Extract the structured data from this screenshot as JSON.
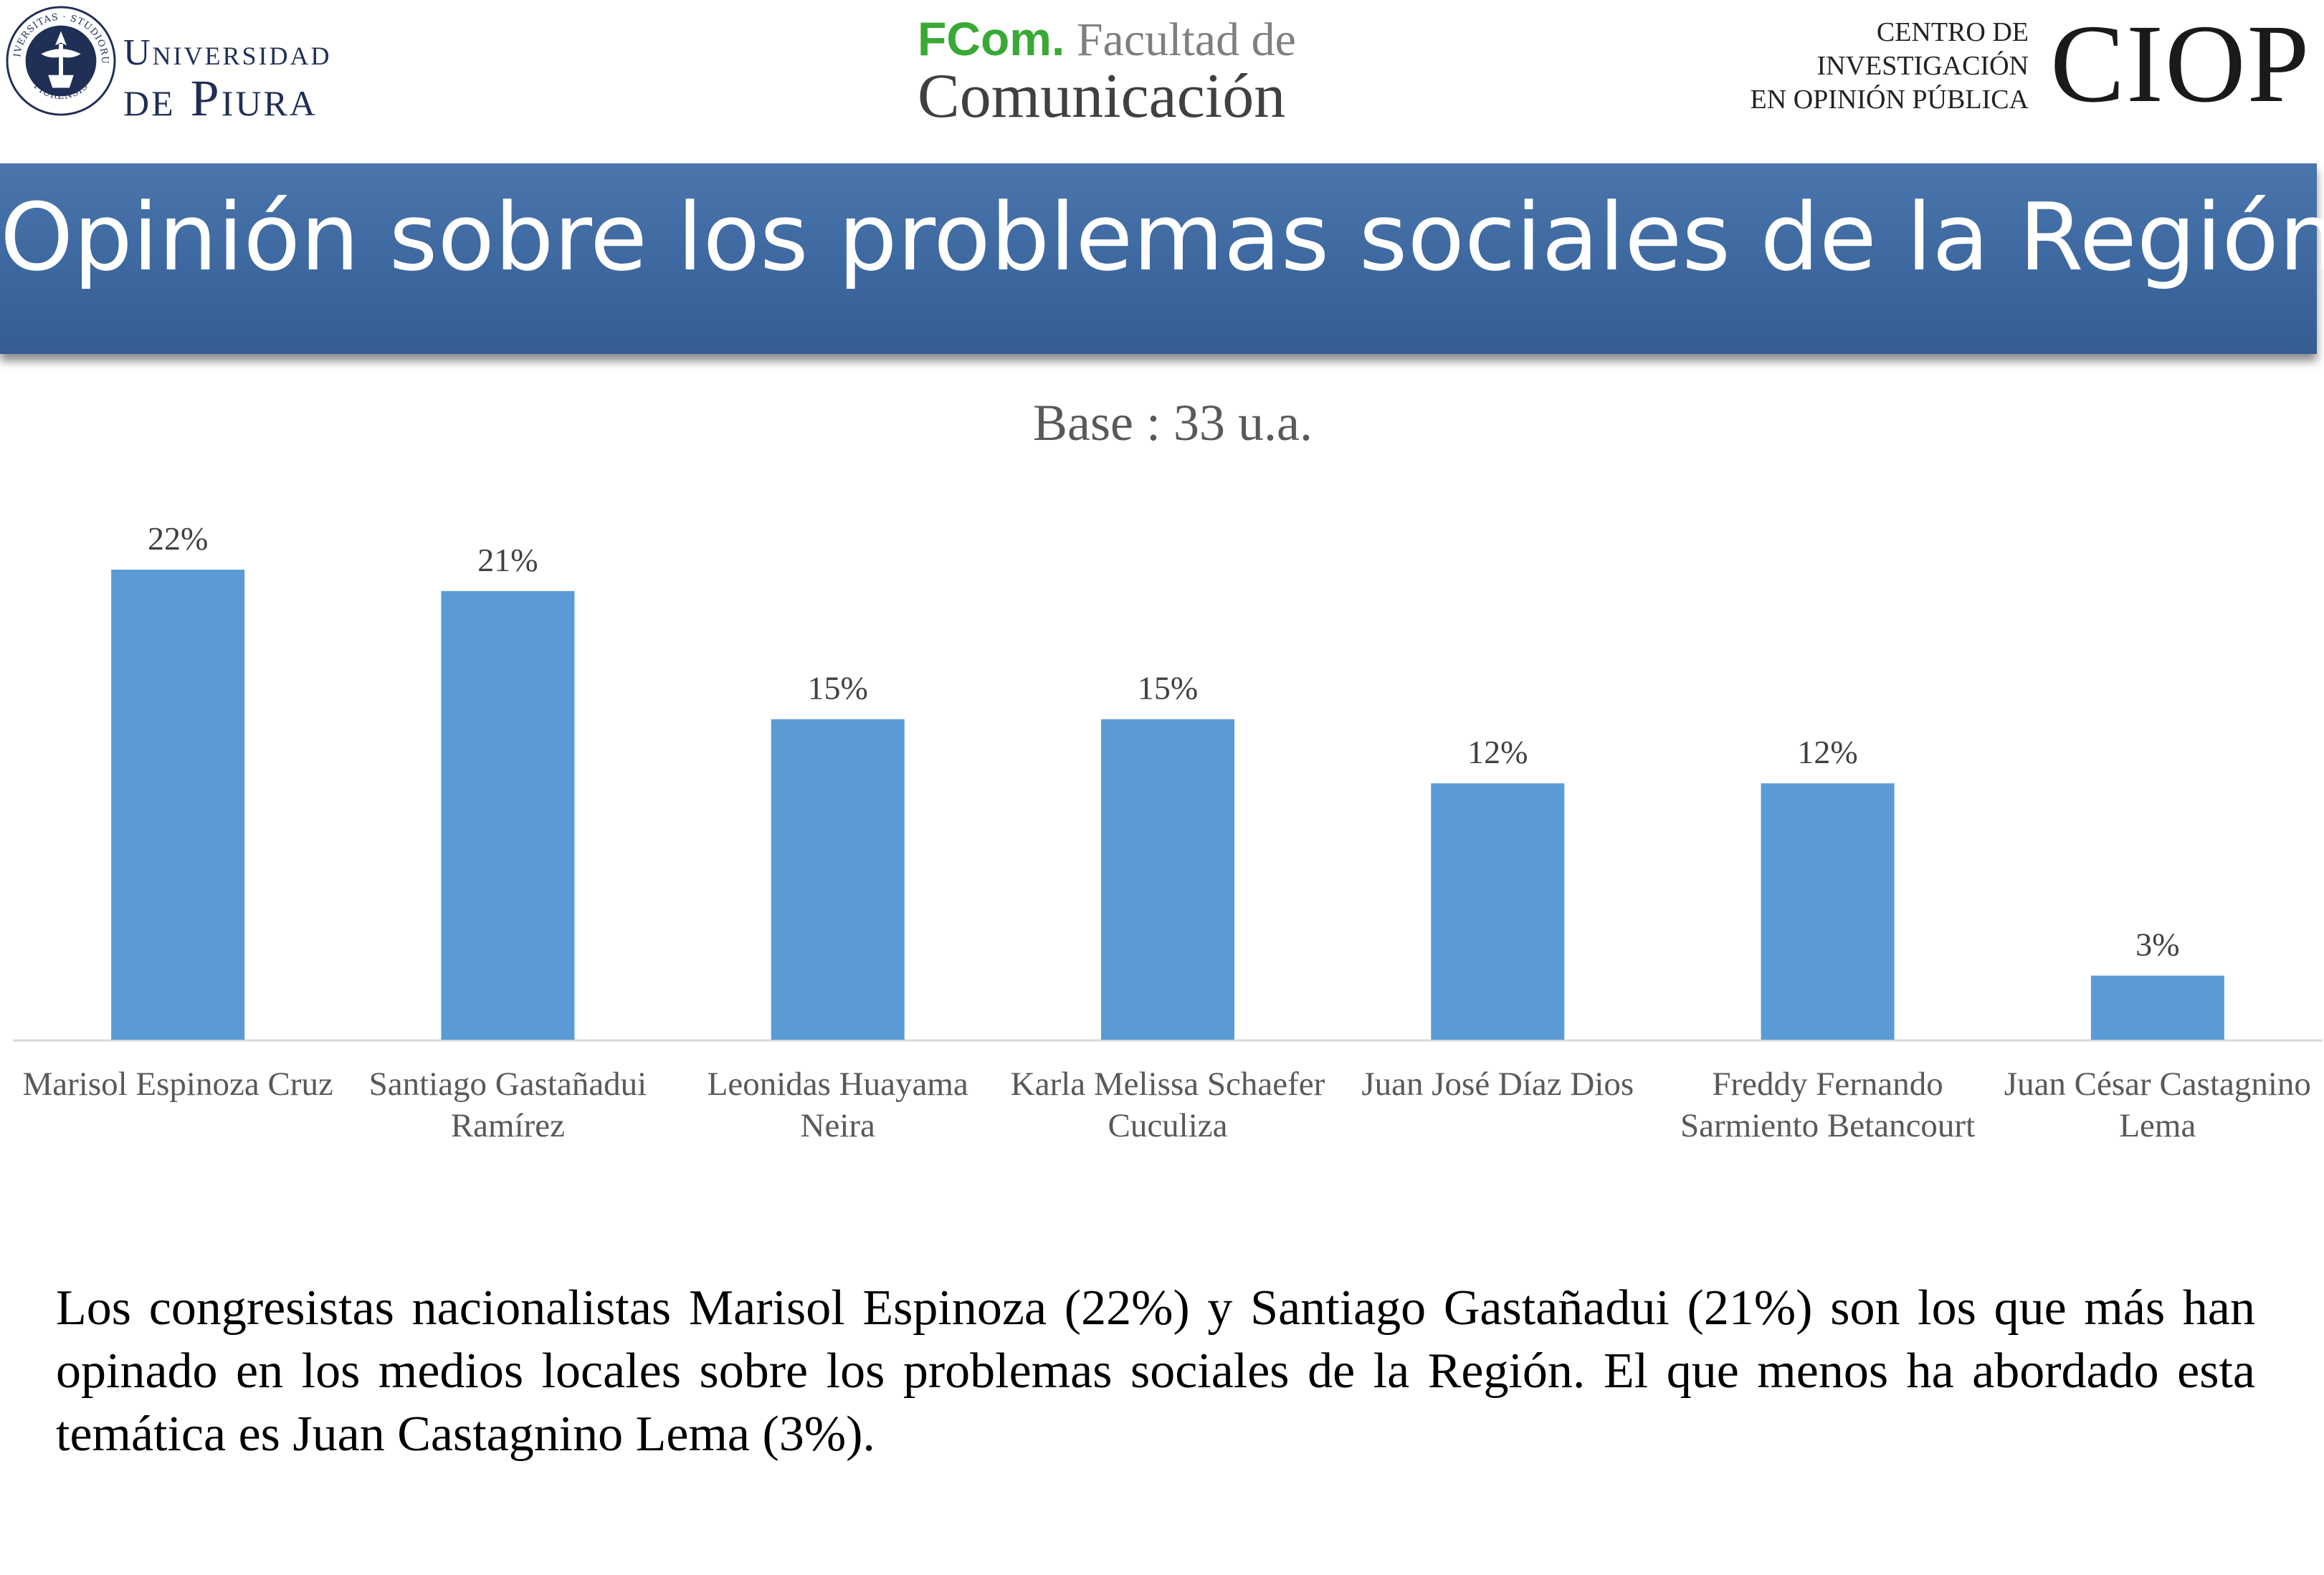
{
  "header": {
    "university_line1": "Universidad",
    "university_line2": "de Piura",
    "seal_text_top": "UNIVERSITAS · STUDIORUM",
    "seal_text_bottom": "PIURENSIS",
    "fcom_brand": "FCom.",
    "fcom_faculty": "Facultad de",
    "fcom_comunicacion": "Comunicación",
    "ciop_line1": "CENTRO DE",
    "ciop_line2": "INVESTIGACIÓN",
    "ciop_line3": "EN OPINIÓN PÚBLICA",
    "ciop_logo": "CIOP"
  },
  "title": "Opinión sobre los problemas sociales de la Región",
  "chart_data": {
    "type": "bar",
    "title": "Base : 33 u.a.",
    "categories": [
      [
        "Marisol Espinoza Cruz"
      ],
      [
        "Santiago Gastañadui",
        "Ramírez"
      ],
      [
        "Leonidas Huayama",
        "Neira"
      ],
      [
        "Karla Melissa Schaefer",
        "Cuculiza"
      ],
      [
        "Juan José Díaz Dios"
      ],
      [
        "Freddy Fernando",
        "Sarmiento Betancourt"
      ],
      [
        "Juan César Castagnino",
        "Lema"
      ]
    ],
    "values": [
      22,
      21,
      15,
      15,
      12,
      12,
      3
    ],
    "value_labels": [
      "22%",
      "21%",
      "15%",
      "15%",
      "12%",
      "12%",
      "3%"
    ],
    "ylim": [
      0,
      22
    ],
    "xlabel": "",
    "ylabel": "",
    "grid": false,
    "bar_color": "#5b9bd5"
  },
  "summary": "Los congresistas nacionalistas Marisol Espinoza (22%) y Santiago Gastañadui (21%) son los que más han opinado en los medios locales sobre los problemas sociales de la Región.  El que menos ha abordado esta temática es Juan Castagnino Lema (3%)."
}
